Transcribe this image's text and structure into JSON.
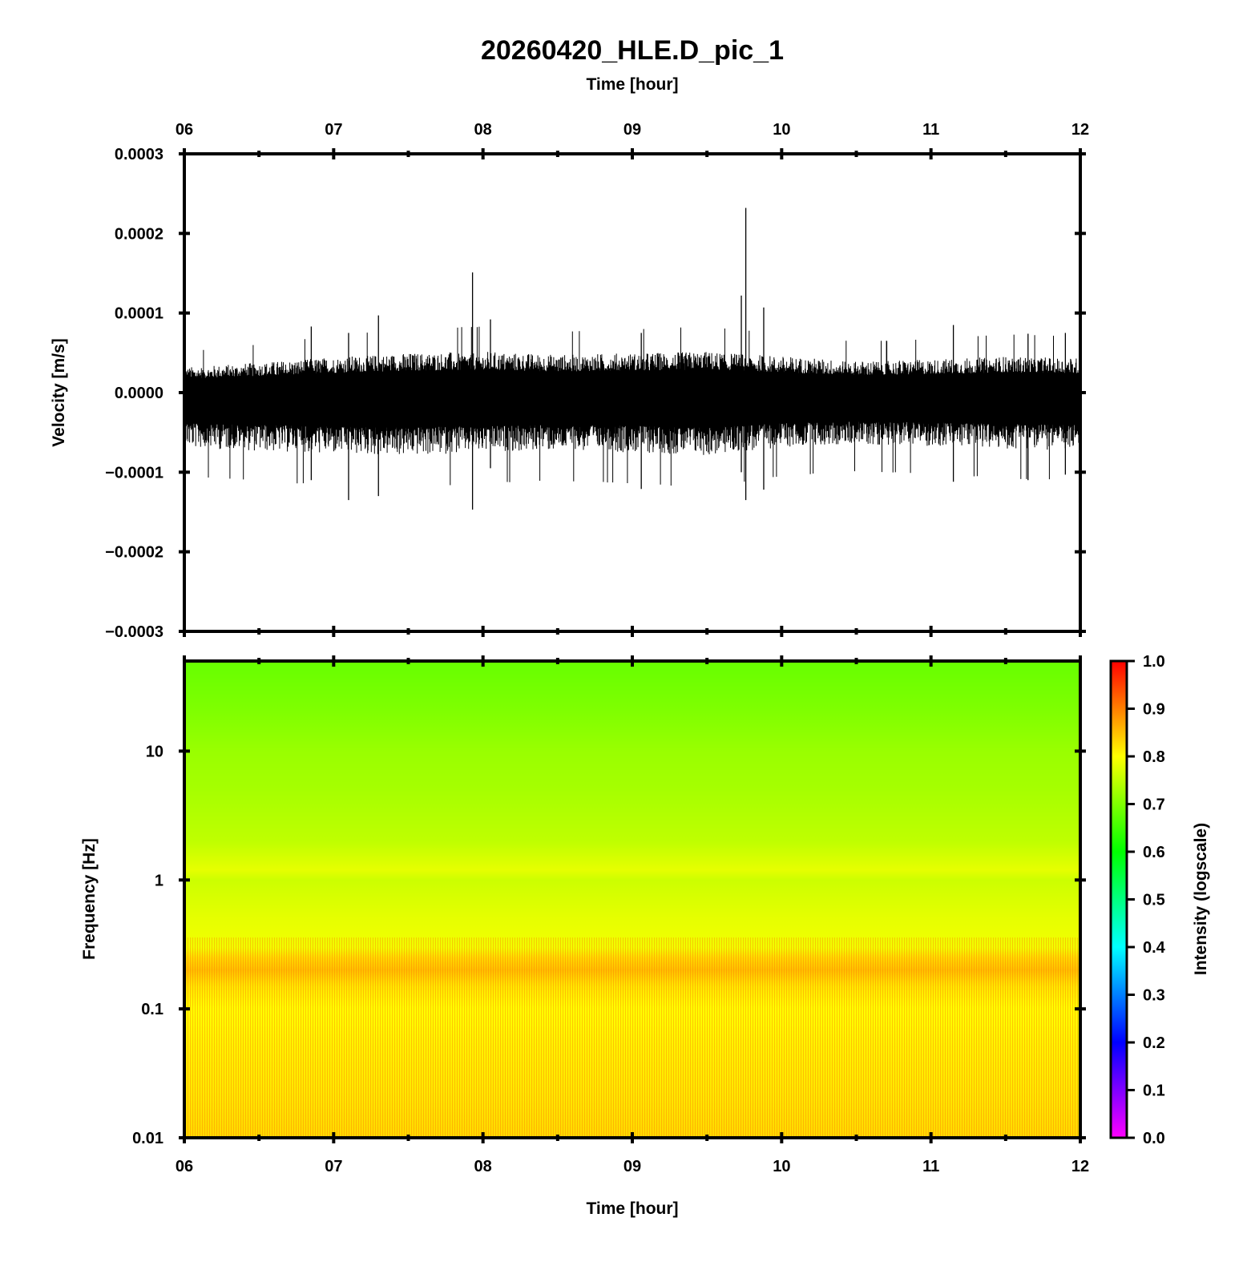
{
  "title": "20260420_HLE.D_pic_1",
  "top_xlabel": "Time [hour]",
  "bottom_xlabel": "Time [hour]",
  "colors": {
    "background": "#ffffff",
    "waveform": "#000000",
    "axis": "#000000",
    "colormap": [
      "#ff00ff",
      "#0000ff",
      "#00ffff",
      "#00ff00",
      "#ffff00",
      "#ff0000"
    ]
  },
  "chart_data": [
    {
      "type": "line",
      "panel": "top",
      "description_source": "seismogram trace",
      "xlabel": "Time [hour]",
      "ylabel": "Velocity [m/s]",
      "xlim": [
        6,
        12
      ],
      "ylim": [
        -0.0003,
        0.0003
      ],
      "x_tick_labels": [
        "06",
        "07",
        "08",
        "09",
        "10",
        "11",
        "12"
      ],
      "x_ticks": [
        6,
        7,
        8,
        9,
        10,
        11,
        12
      ],
      "y_tick_labels": [
        "0.0003",
        "0.0002",
        "0.0001",
        "0.0000",
        "−0.0001",
        "−0.0002",
        "−0.0003"
      ],
      "y_ticks": [
        0.0003,
        0.0002,
        0.0001,
        0.0,
        -0.0001,
        -0.0002,
        -0.0003
      ],
      "grid": false,
      "envelope": {
        "x": [
          6.0,
          6.5,
          7.0,
          7.5,
          8.0,
          8.5,
          9.0,
          9.5,
          10.0,
          10.5,
          11.0,
          11.5,
          12.0
        ],
        "upper": [
          3.2e-05,
          3.8e-05,
          4.5e-05,
          5e-05,
          5.2e-05,
          4.8e-05,
          5e-05,
          5.2e-05,
          4.6e-05,
          4e-05,
          4.2e-05,
          4.6e-05,
          4.4e-05
        ],
        "lower": [
          -7e-05,
          -7.4e-05,
          -7.8e-05,
          -8e-05,
          -7.6e-05,
          -7.4e-05,
          -7.6e-05,
          -8e-05,
          -7e-05,
          -6.6e-05,
          -6.8e-05,
          -7.2e-05,
          -7.4e-05
        ]
      },
      "spikes": [
        {
          "x": 7.93,
          "y_max": 0.000151,
          "y_min": -0.000147
        },
        {
          "x": 9.76,
          "y_max": 0.000232,
          "y_min": -0.000135
        },
        {
          "x": 9.73,
          "y_max": 0.000122,
          "y_min": -0.0001
        },
        {
          "x": 9.88,
          "y_max": 0.000107,
          "y_min": -0.000122
        },
        {
          "x": 7.3,
          "y_max": 9.7e-05,
          "y_min": -0.00013
        },
        {
          "x": 7.1,
          "y_max": 7.5e-05,
          "y_min": -0.000135
        },
        {
          "x": 6.85,
          "y_max": 8.3e-05,
          "y_min": -0.00011
        },
        {
          "x": 8.05,
          "y_max": 9.2e-05,
          "y_min": -9.5e-05
        },
        {
          "x": 9.06,
          "y_max": 7.5e-05,
          "y_min": -0.000121
        },
        {
          "x": 11.15,
          "y_max": 8.5e-05,
          "y_min": -0.000112
        },
        {
          "x": 11.65,
          "y_max": 7.4e-05,
          "y_min": -0.00011
        },
        {
          "x": 11.9,
          "y_max": 7.5e-05,
          "y_min": -0.000103
        }
      ]
    },
    {
      "type": "heatmap",
      "panel": "bottom",
      "description_source": "spectrogram",
      "xlabel": "Time [hour]",
      "ylabel": "Frequency [Hz]",
      "xlim": [
        6,
        12
      ],
      "ylim": [
        0.01,
        50
      ],
      "y_scale": "log",
      "x_tick_labels": [
        "06",
        "07",
        "08",
        "09",
        "10",
        "11",
        "12"
      ],
      "x_ticks": [
        6,
        7,
        8,
        9,
        10,
        11,
        12
      ],
      "y_tick_labels": [
        "10",
        "1",
        "0.1",
        "0.01"
      ],
      "y_ticks": [
        10,
        1,
        0.1,
        0.01
      ],
      "grid": false,
      "intensity_profile": {
        "frequency": [
          50,
          20,
          10,
          5,
          2,
          1.2,
          1,
          0.5,
          0.3,
          0.25,
          0.2,
          0.15,
          0.1,
          0.05,
          0.02,
          0.01
        ],
        "intensity": [
          0.68,
          0.7,
          0.72,
          0.73,
          0.75,
          0.78,
          0.76,
          0.78,
          0.79,
          0.83,
          0.85,
          0.82,
          0.8,
          0.81,
          0.82,
          0.83
        ]
      },
      "colorbar": {
        "label": "Intensity (logscale)",
        "range": [
          0.0,
          1.0
        ],
        "tick_labels": [
          "1.0",
          "0.9",
          "0.8",
          "0.7",
          "0.6",
          "0.5",
          "0.4",
          "0.3",
          "0.2",
          "0.1",
          "0.0"
        ],
        "ticks": [
          1.0,
          0.9,
          0.8,
          0.7,
          0.6,
          0.5,
          0.4,
          0.3,
          0.2,
          0.1,
          0.0
        ],
        "placement": "right"
      }
    }
  ]
}
